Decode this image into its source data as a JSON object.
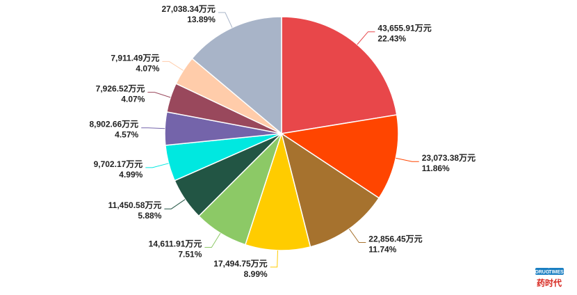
{
  "chart_data": {
    "type": "pie",
    "start": "12 o'clock",
    "direction": "clockwise",
    "slices": [
      {
        "value": "43,655.91万元",
        "percent": "22.43%",
        "pct": 22.43,
        "color": "#E8474A"
      },
      {
        "value": "23,073.38万元",
        "percent": "11.86%",
        "pct": 11.86,
        "color": "#FF4500"
      },
      {
        "value": "22,856.45万元",
        "percent": "11.74%",
        "pct": 11.74,
        "color": "#A6722E"
      },
      {
        "value": "17,494.75万元",
        "percent": "8.99%",
        "pct": 8.99,
        "color": "#FFCC00"
      },
      {
        "value": "14,611.91万元",
        "percent": "7.51%",
        "pct": 7.51,
        "color": "#8CC966"
      },
      {
        "value": "11,450.58万元",
        "percent": "5.88%",
        "pct": 5.88,
        "color": "#225544"
      },
      {
        "value": "9,702.17万元",
        "percent": "4.99%",
        "pct": 4.99,
        "color": "#00E8E0"
      },
      {
        "value": "8,902.66万元",
        "percent": "4.57%",
        "pct": 4.57,
        "color": "#7464AA"
      },
      {
        "value": "7,926.52万元",
        "percent": "4.07%",
        "pct": 4.07,
        "color": "#99485C"
      },
      {
        "value": "7,911.49万元",
        "percent": "4.07%",
        "pct": 4.07,
        "color": "#FFCCAA"
      },
      {
        "value": "27,038.34万元",
        "percent": "13.89%",
        "pct": 13.89,
        "color": "#A8B4C8"
      }
    ]
  },
  "watermark": {
    "badge_left": "DRUG",
    "badge_right": "TIMES",
    "text": "药时代",
    "blue": "#1A7FC2",
    "red": "#D7261E"
  }
}
